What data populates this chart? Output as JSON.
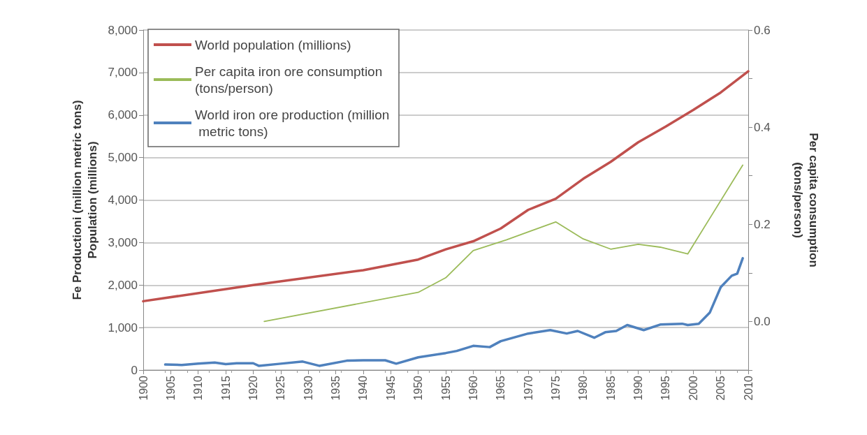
{
  "chart_data": {
    "type": "line",
    "xlabel": null,
    "ylabel": "Fe Productioni (million metric tons)\nPopulation (millions)",
    "y2label": "Per capita consumption\n(tons/person)",
    "xlim": [
      1900,
      2010
    ],
    "xticks": [
      1900,
      1905,
      1910,
      1915,
      1920,
      1925,
      1930,
      1935,
      1940,
      1945,
      1950,
      1955,
      1960,
      1965,
      1970,
      1975,
      1980,
      1985,
      1990,
      1995,
      2000,
      2005,
      2010
    ],
    "ylim": [
      0,
      8000
    ],
    "yticks": [
      {
        "value": 0,
        "label": "0"
      },
      {
        "value": 1000,
        "label": "1,000"
      },
      {
        "value": 2000,
        "label": "2,000"
      },
      {
        "value": 3000,
        "label": "3,000"
      },
      {
        "value": 4000,
        "label": "4,000"
      },
      {
        "value": 5000,
        "label": "5,000"
      },
      {
        "value": 6000,
        "label": "6,000"
      },
      {
        "value": 7000,
        "label": "7,000"
      },
      {
        "value": 8000,
        "label": "8,000"
      }
    ],
    "y2lim": [
      -0.1,
      0.6
    ],
    "y2ticks": [
      {
        "value": -0.1,
        "label": null
      },
      {
        "value": 0,
        "label": "0.0"
      },
      {
        "value": 0.1,
        "label": null
      },
      0.2,
      {
        "value": 0.3,
        "label": null
      },
      0.4,
      {
        "value": 0.5,
        "label": null
      },
      0.6
    ],
    "grid": "y",
    "legend": "top left",
    "marker": "none",
    "line_style": "solid",
    "series": [
      {
        "name": "World population (millions)",
        "color": "#c0504d",
        "x": [
          1900,
          1920,
          1940,
          1950,
          1955,
          1960,
          1965,
          1970,
          1975,
          1980,
          1985,
          1990,
          1995,
          2000,
          2005,
          2010
        ],
        "values": [
          1620,
          2000,
          2350,
          2600,
          2840,
          3030,
          3330,
          3770,
          4030,
          4500,
          4900,
          5360,
          5730,
          6120,
          6530,
          7030
        ]
      },
      {
        "name": "Per capita iron ore consumption (tons/person)",
        "color": "#9bbb59",
        "axis": "y2",
        "x": [
          1922,
          1950,
          1955,
          1960,
          1966,
          1975,
          1980,
          1985,
          1990,
          1994,
          1999,
          2009
        ],
        "values": [
          0.0,
          0.06,
          0.09,
          0.146,
          0.168,
          0.205,
          0.17,
          0.149,
          0.159,
          0.153,
          0.139,
          0.322
        ]
      },
      {
        "name": "World iron ore production (million metric tons)",
        "color": "#4f81bd",
        "x": [
          1904,
          1907,
          1910,
          1913,
          1915,
          1917,
          1920,
          1921,
          1925,
          1929,
          1932,
          1937,
          1940,
          1944,
          1946,
          1950,
          1955,
          1957,
          1960,
          1963,
          1965,
          1970,
          1974,
          1977,
          1979,
          1982,
          1984,
          1986,
          1988,
          1991,
          1994,
          1998,
          1999,
          2001,
          2003,
          2005,
          2007,
          2008,
          2009
        ],
        "values": [
          130,
          120,
          150,
          175,
          140,
          160,
          160,
          100,
          150,
          200,
          100,
          220,
          230,
          230,
          150,
          300,
          400,
          450,
          570,
          540,
          680,
          860,
          940,
          860,
          920,
          760,
          890,
          920,
          1060,
          940,
          1070,
          1090,
          1060,
          1090,
          1350,
          1950,
          2220,
          2270,
          2630
        ]
      }
    ]
  }
}
